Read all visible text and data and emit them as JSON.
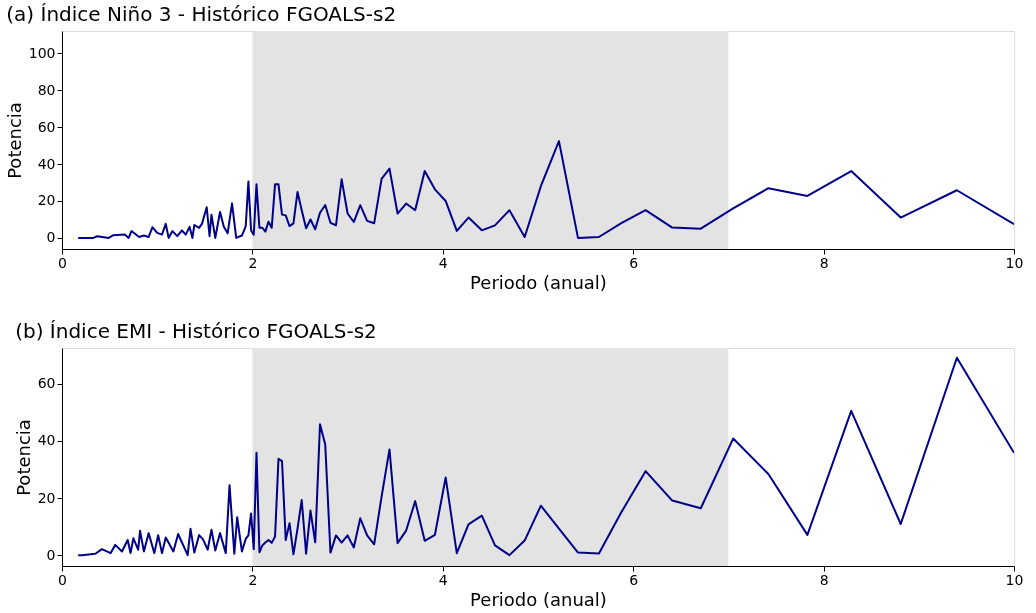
{
  "chart_data": [
    {
      "type": "line",
      "title": "(a) Índice Niño 3 - Histórico FGOALS-s2",
      "xlabel": "Periodo (anual)",
      "ylabel": "Potencia",
      "xlim": [
        0,
        10
      ],
      "xticks": [
        0,
        2,
        4,
        6,
        8,
        10
      ],
      "ylim": [
        -6,
        112
      ],
      "yticks": [
        0,
        20,
        40,
        60,
        80,
        100
      ],
      "grid": false,
      "marker": "none",
      "line_style": "solid",
      "bands": [
        {
          "axis": "x",
          "from": 2,
          "to": 7,
          "color": "#e3e3e3"
        }
      ],
      "series": [
        {
          "color": "#00008b",
          "x": [
            0.17,
            0.21,
            0.33,
            0.37,
            0.49,
            0.54,
            0.66,
            0.7,
            0.73,
            0.81,
            0.86,
            0.91,
            0.95,
            1.0,
            1.05,
            1.09,
            1.12,
            1.16,
            1.21,
            1.26,
            1.3,
            1.34,
            1.37,
            1.39,
            1.44,
            1.47,
            1.52,
            1.55,
            1.57,
            1.61,
            1.66,
            1.7,
            1.74,
            1.786,
            1.83,
            1.89,
            1.93,
            1.958,
            1.986,
            2.014,
            2.043,
            2.074,
            2.104,
            2.136,
            2.169,
            2.203,
            2.238,
            2.274,
            2.311,
            2.35,
            2.39,
            2.431,
            2.474,
            2.518,
            2.564,
            2.61,
            2.66,
            2.71,
            2.765,
            2.82,
            2.878,
            2.9375,
            3.0,
            3.065,
            3.133,
            3.205,
            3.279,
            3.357,
            3.44,
            3.525,
            3.615,
            3.71,
            3.81,
            3.917,
            4.03,
            4.147,
            4.27,
            4.41,
            4.548,
            4.7,
            4.86,
            5.03,
            5.22,
            5.42,
            5.64,
            5.875,
            6.13,
            6.41,
            6.71,
            7.05,
            7.42,
            7.83,
            8.29,
            8.81,
            9.4,
            10.0
          ],
          "values": [
            0,
            0,
            0,
            0.9,
            0,
            1.5,
            1.8,
            0,
            3.7,
            0.5,
            1.3,
            0.5,
            5.8,
            2.7,
            1.8,
            7.6,
            0,
            3.7,
            1,
            4,
            1.8,
            6,
            0,
            7,
            5.4,
            7.6,
            16.6,
            0.9,
            12.6,
            0,
            14,
            6,
            2.5,
            18.7,
            0,
            1.3,
            6.4,
            30.6,
            4,
            1.7,
            29,
            5.5,
            5.5,
            3.4,
            8.8,
            5.5,
            29,
            29,
            12.6,
            12.2,
            6.4,
            7.9,
            24.9,
            15,
            5.2,
            10,
            4.7,
            13.6,
            17.8,
            8.2,
            6.8,
            31.7,
            13.2,
            8.6,
            17.7,
            9.2,
            7.9,
            32,
            37.5,
            13.2,
            18.6,
            15,
            36.2,
            26.3,
            20,
            3.8,
            11,
            4.1,
            6.8,
            15,
            0.5,
            28,
            52.4,
            0,
            0.5,
            8,
            15,
            5.6,
            5,
            16,
            26.9,
            22.7,
            36.2,
            11,
            25.8,
            7.4
          ]
        }
      ]
    },
    {
      "type": "line",
      "title": "(b) Índice EMI - Histórico FGOALS-s2",
      "xlabel": "Periodo (anual)",
      "ylabel": "Potencia",
      "xlim": [
        0,
        10
      ],
      "xticks": [
        0,
        2,
        4,
        6,
        8,
        10
      ],
      "ylim": [
        -3.8,
        72.5
      ],
      "yticks": [
        0,
        20,
        40,
        60
      ],
      "grid": false,
      "marker": "none",
      "line_style": "solid",
      "bands": [
        {
          "axis": "x",
          "from": 2,
          "to": 7,
          "color": "#e3e3e3"
        }
      ],
      "series": [
        {
          "color": "#00008b",
          "x": [
            0.17,
            0.21,
            0.35,
            0.42,
            0.51,
            0.56,
            0.63,
            0.69,
            0.72,
            0.75,
            0.8,
            0.82,
            0.86,
            0.91,
            0.97,
            1.01,
            1.05,
            1.09,
            1.17,
            1.22,
            1.32,
            1.35,
            1.39,
            1.44,
            1.48,
            1.53,
            1.57,
            1.61,
            1.66,
            1.72,
            1.76,
            1.81,
            1.84,
            1.89,
            1.93,
            1.958,
            1.986,
            2.014,
            2.043,
            2.074,
            2.104,
            2.136,
            2.169,
            2.203,
            2.238,
            2.274,
            2.311,
            2.35,
            2.39,
            2.431,
            2.474,
            2.518,
            2.564,
            2.61,
            2.66,
            2.71,
            2.765,
            2.82,
            2.878,
            2.9375,
            3.0,
            3.065,
            3.133,
            3.205,
            3.279,
            3.357,
            3.44,
            3.525,
            3.615,
            3.71,
            3.81,
            3.917,
            4.03,
            4.147,
            4.27,
            4.41,
            4.548,
            4.7,
            4.86,
            5.03,
            5.42,
            5.64,
            5.875,
            6.13,
            6.41,
            6.71,
            7.05,
            7.42,
            7.83,
            8.29,
            8.81,
            9.4,
            10.0
          ],
          "values": [
            0,
            0,
            0.5,
            2.1,
            0.7,
            3.6,
            1.3,
            5.3,
            0.7,
            5.9,
            1.9,
            8.5,
            1.3,
            7.7,
            0.7,
            7,
            0.7,
            6.2,
            1.3,
            7.4,
            0,
            9.2,
            0.9,
            7,
            5.6,
            1.9,
            8.9,
            1.6,
            7.7,
            0.7,
            24.5,
            0.5,
            13.3,
            1.3,
            5.7,
            6.9,
            14.6,
            2.1,
            35.8,
            1,
            3.4,
            4.4,
            5.3,
            4.3,
            6.5,
            33.7,
            32.9,
            5.3,
            11.2,
            0.3,
            9.3,
            19.3,
            0.5,
            15.6,
            4.5,
            45.8,
            38.7,
            0.9,
            6.9,
            4.4,
            6.9,
            2.7,
            12.9,
            6.9,
            3.8,
            20.5,
            37,
            4.2,
            8.6,
            18.9,
            5,
            7.1,
            27.2,
            0.7,
            10.8,
            13.8,
            3.4,
            0,
            5.1,
            17.3,
            0.9,
            0.6,
            15,
            29.4,
            19.1,
            16.4,
            40.8,
            28.4,
            7.1,
            50.5,
            10.9,
            69.1,
            35.8
          ]
        }
      ]
    }
  ]
}
